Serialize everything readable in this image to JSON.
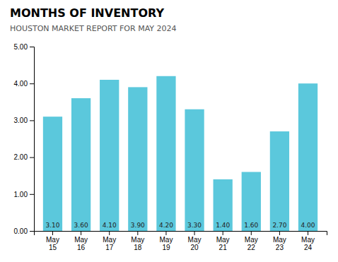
{
  "chart_data": {
    "type": "bar",
    "title": "MONTHS OF INVENTORY",
    "subtitle": "HOUSTON MARKET REPORT FOR MAY 2024",
    "categories": [
      "May\n15",
      "May\n16",
      "May\n17",
      "May\n18",
      "May\n19",
      "May\n20",
      "May\n21",
      "May\n22",
      "May\n23",
      "May\n24"
    ],
    "values": [
      3.1,
      3.6,
      4.1,
      3.9,
      4.2,
      3.3,
      1.4,
      1.6,
      2.7,
      4.0
    ],
    "value_labels": [
      "3.10",
      "3.60",
      "4.10",
      "3.90",
      "4.20",
      "3.30",
      "1.40",
      "1.60",
      "2.70",
      "4.00"
    ],
    "data_labels": true,
    "color": "#5BC8DC",
    "ylim": [
      0,
      5.0
    ],
    "yticks": [
      {
        "value": 0,
        "label": "0.00"
      },
      {
        "value": 1,
        "label": "1.00"
      },
      {
        "value": 2,
        "label": "2.00"
      },
      {
        "value": 3,
        "label": "3.00"
      },
      {
        "value": 4,
        "label": "4.00"
      },
      {
        "value": 5,
        "label": "5.00"
      }
    ],
    "grid": false
  }
}
